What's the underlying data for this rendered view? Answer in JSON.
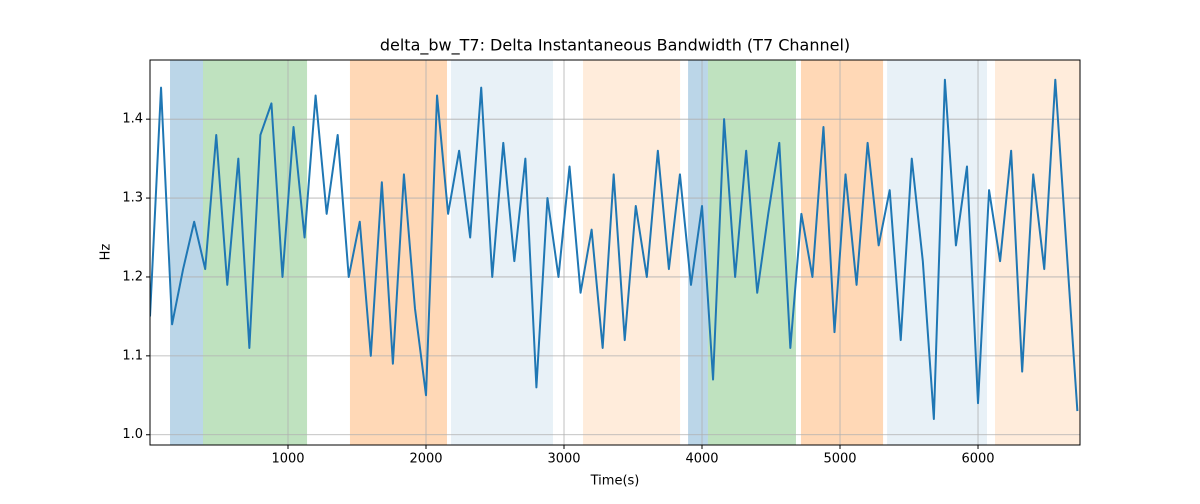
{
  "chart_data": {
    "type": "line",
    "title": "delta_bw_T7: Delta Instantaneous Bandwidth (T7 Channel)",
    "xlabel": "Time(s)",
    "ylabel": "Hz",
    "x": [
      0,
      80,
      160,
      240,
      320,
      400,
      480,
      560,
      640,
      720,
      800,
      880,
      960,
      1040,
      1120,
      1200,
      1280,
      1360,
      1440,
      1520,
      1600,
      1680,
      1760,
      1840,
      1920,
      2000,
      2080,
      2160,
      2240,
      2320,
      2400,
      2480,
      2560,
      2640,
      2720,
      2800,
      2880,
      2960,
      3040,
      3120,
      3200,
      3280,
      3360,
      3440,
      3520,
      3600,
      3680,
      3760,
      3840,
      3920,
      4000,
      4080,
      4160,
      4240,
      4320,
      4400,
      4480,
      4560,
      4640,
      4720,
      4800,
      4880,
      4960,
      5040,
      5120,
      5200,
      5280,
      5360,
      5440,
      5520,
      5600,
      5680,
      5760,
      5840,
      5920,
      6000,
      6080,
      6160,
      6240,
      6320,
      6400,
      6480,
      6560,
      6640,
      6720
    ],
    "series": [
      {
        "color": "#1f77b4",
        "values": [
          1.15,
          1.44,
          1.14,
          1.21,
          1.27,
          1.21,
          1.38,
          1.19,
          1.35,
          1.11,
          1.38,
          1.42,
          1.2,
          1.39,
          1.25,
          1.43,
          1.28,
          1.38,
          1.2,
          1.27,
          1.1,
          1.32,
          1.09,
          1.33,
          1.16,
          1.05,
          1.43,
          1.28,
          1.36,
          1.25,
          1.44,
          1.2,
          1.37,
          1.22,
          1.35,
          1.06,
          1.3,
          1.2,
          1.34,
          1.18,
          1.26,
          1.11,
          1.33,
          1.12,
          1.29,
          1.2,
          1.36,
          1.21,
          1.33,
          1.19,
          1.29,
          1.07,
          1.4,
          1.2,
          1.36,
          1.18,
          1.28,
          1.37,
          1.11,
          1.28,
          1.2,
          1.39,
          1.13,
          1.33,
          1.19,
          1.37,
          1.24,
          1.31,
          1.12,
          1.35,
          1.22,
          1.02,
          1.45,
          1.24,
          1.34,
          1.04,
          1.31,
          1.22,
          1.36,
          1.08,
          1.33,
          1.21,
          1.45,
          1.24,
          1.03
        ]
      }
    ],
    "spans": [
      {
        "start": 145,
        "end": 384,
        "color": "#1f77b4",
        "opacity": 0.3
      },
      {
        "start": 384,
        "end": 1138,
        "color": "#2ca02c",
        "opacity": 0.3
      },
      {
        "start": 1449,
        "end": 2152,
        "color": "#ff7f0e",
        "opacity": 0.3
      },
      {
        "start": 2181,
        "end": 2920,
        "color": "#1f77b4",
        "opacity": 0.1
      },
      {
        "start": 3138,
        "end": 3841,
        "color": "#ff7f0e",
        "opacity": 0.15
      },
      {
        "start": 3899,
        "end": 4043,
        "color": "#1f77b4",
        "opacity": 0.3
      },
      {
        "start": 4043,
        "end": 4681,
        "color": "#2ca02c",
        "opacity": 0.3
      },
      {
        "start": 4717,
        "end": 5312,
        "color": "#ff7f0e",
        "opacity": 0.3
      },
      {
        "start": 5341,
        "end": 6065,
        "color": "#1f77b4",
        "opacity": 0.1
      },
      {
        "start": 6123,
        "end": 6739,
        "color": "#ff7f0e",
        "opacity": 0.15
      }
    ],
    "xlim": [
      0,
      6739
    ],
    "ylim": [
      0.987,
      1.475
    ],
    "xticks": [
      1000,
      2000,
      3000,
      4000,
      5000,
      6000
    ],
    "yticks": [
      {
        "value": 1,
        "label": "1.0"
      },
      1.1,
      1.2,
      1.3,
      1.4
    ],
    "grid": true
  }
}
